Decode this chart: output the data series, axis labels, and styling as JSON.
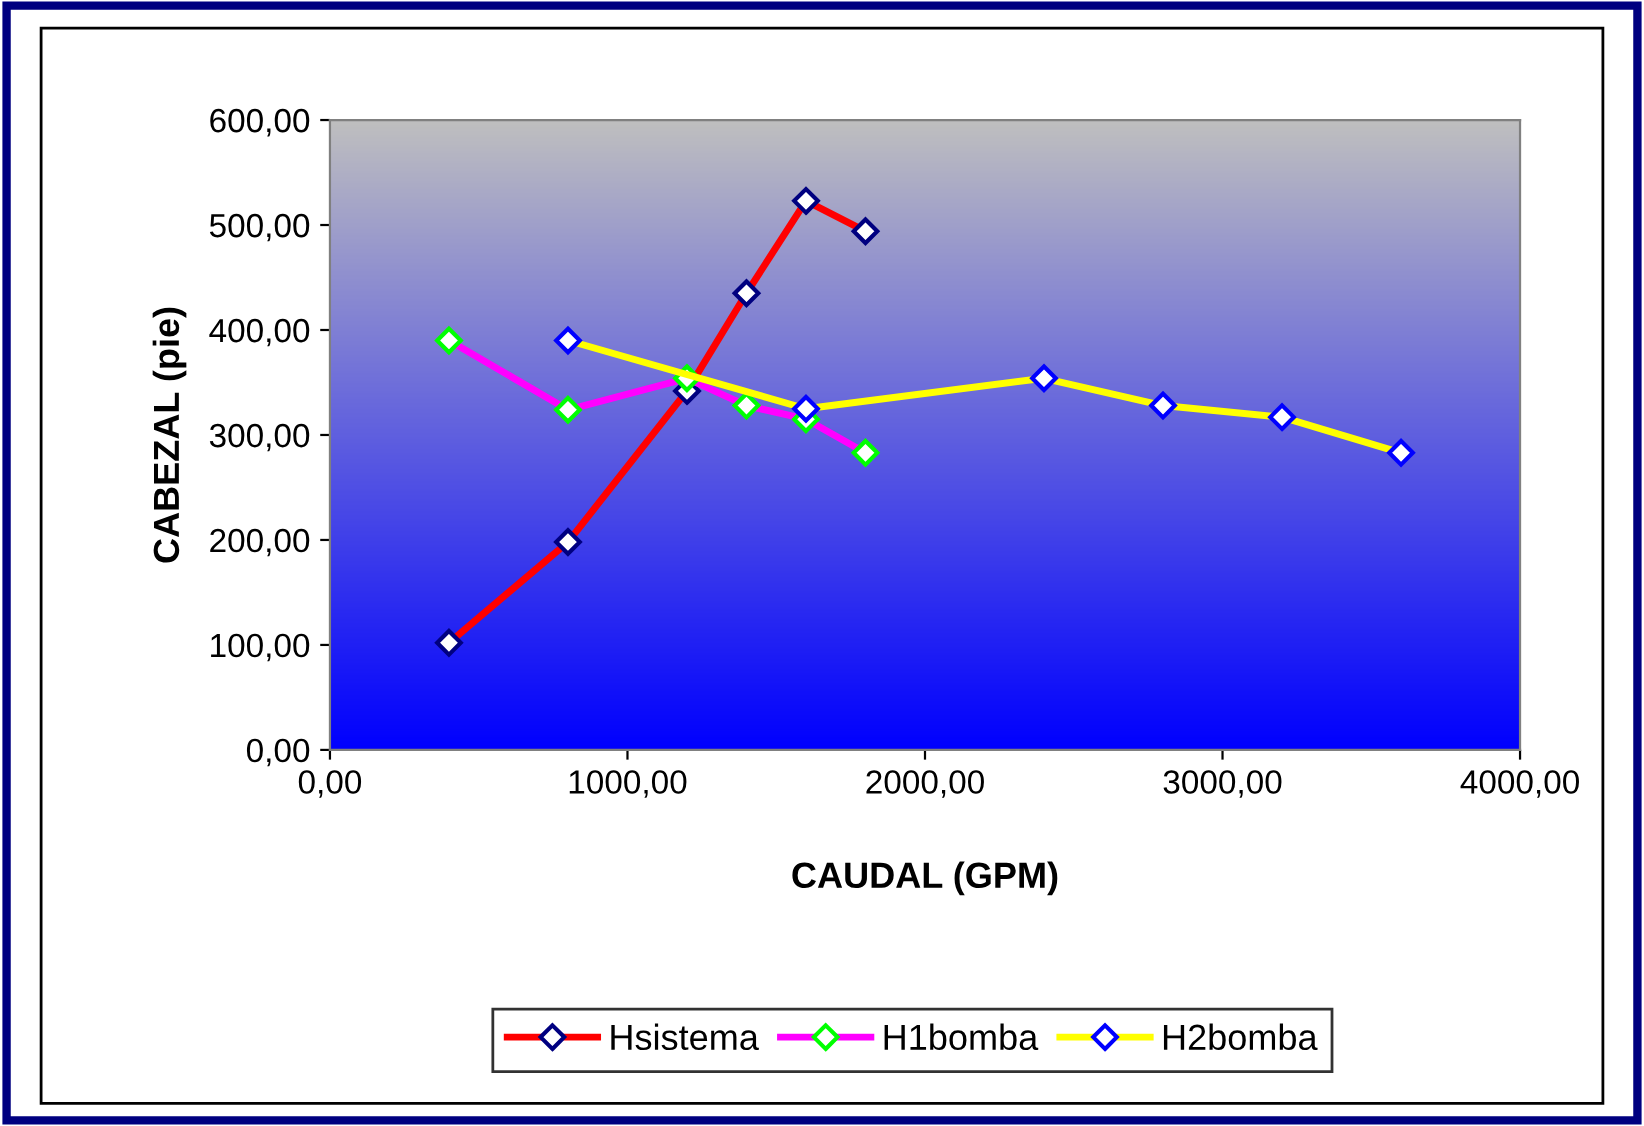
{
  "chart_data": {
    "type": "line",
    "xlabel": "CAUDAL (GPM)",
    "ylabel": "CABEZAL (pie)",
    "xlim": [
      0,
      4000
    ],
    "ylim": [
      0,
      600
    ],
    "xticks": [
      {
        "value": 0,
        "label": "0,00"
      },
      {
        "value": 1000,
        "label": "1000,00"
      },
      {
        "value": 2000,
        "label": "2000,00"
      },
      {
        "value": 3000,
        "label": "3000,00"
      },
      {
        "value": 4000,
        "label": "4000,00"
      }
    ],
    "yticks": [
      {
        "value": 0,
        "label": "0,00"
      },
      {
        "value": 100,
        "label": "100,00"
      },
      {
        "value": 200,
        "label": "200,00"
      },
      {
        "value": 300,
        "label": "300,00"
      },
      {
        "value": 400,
        "label": "400,00"
      },
      {
        "value": 500,
        "label": "500,00"
      },
      {
        "value": 600,
        "label": "600,00"
      }
    ],
    "grid": false,
    "legend": "bottom",
    "marker": "diamond",
    "line_style": "solid",
    "series": [
      {
        "name": "Hsistema",
        "color": "#ff0000",
        "x": [
          400,
          800,
          1200,
          1400,
          1600,
          1800
        ],
        "values": [
          102,
          198,
          342,
          435,
          523,
          494
        ]
      },
      {
        "name": "H1bomba",
        "color": "#ff00ff",
        "x": [
          400,
          800,
          1200,
          1400,
          1600,
          1800
        ],
        "values": [
          390,
          324,
          354,
          328,
          315,
          283
        ]
      },
      {
        "name": "H2bomba",
        "color": "#ffff00",
        "x": [
          800,
          1600,
          2400,
          2800,
          3200,
          3600
        ],
        "values": [
          390,
          325,
          354,
          328,
          317,
          283
        ]
      }
    ]
  }
}
